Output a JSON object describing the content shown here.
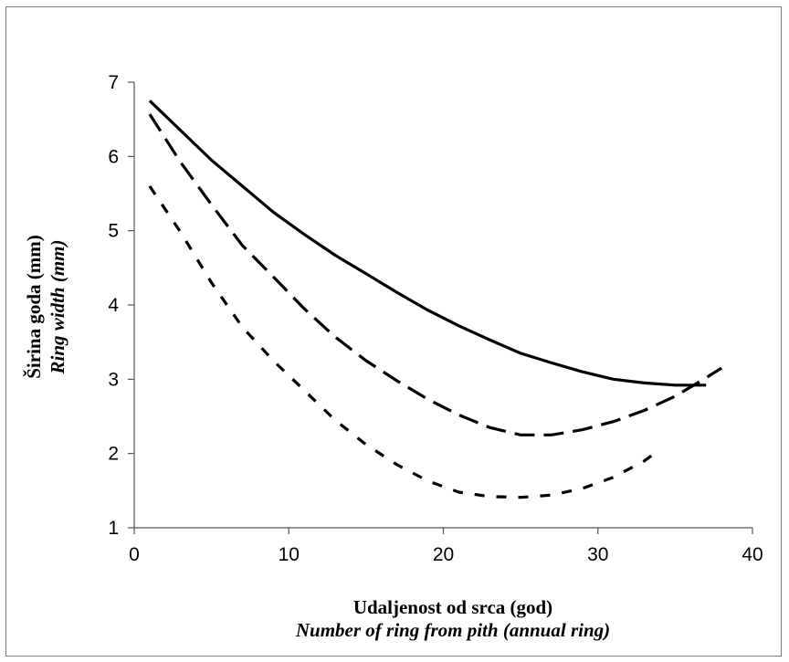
{
  "chart_data": {
    "type": "line",
    "xlabel": "Udaljenost od srca (god)",
    "xlabel_en": "Number of ring from pith (annual ring)",
    "ylabel": "Širina goda (mm)",
    "ylabel_en": "Ring width (mm)",
    "xlim": [
      0,
      40
    ],
    "ylim": [
      1,
      7
    ],
    "xticks": [
      "0",
      "10",
      "20",
      "30",
      "40"
    ],
    "yticks": [
      "1",
      "2",
      "3",
      "4",
      "5",
      "6",
      "7"
    ],
    "grid": false,
    "series": [
      {
        "style": "solid",
        "x": [
          1,
          3,
          5,
          7,
          9,
          11,
          13,
          15,
          17,
          19,
          21,
          23,
          25,
          27,
          29,
          31,
          33,
          35,
          37
        ],
        "y": [
          6.75,
          6.35,
          5.95,
          5.6,
          5.25,
          4.95,
          4.67,
          4.42,
          4.17,
          3.93,
          3.72,
          3.53,
          3.35,
          3.22,
          3.1,
          3.0,
          2.95,
          2.92,
          2.92
        ]
      },
      {
        "style": "dashed",
        "x": [
          1,
          3,
          5,
          7,
          9,
          11,
          13,
          15,
          17,
          19,
          21,
          23,
          25,
          27,
          29,
          31,
          33,
          35,
          37,
          38
        ],
        "y": [
          6.57,
          5.92,
          5.35,
          4.8,
          4.38,
          3.95,
          3.57,
          3.25,
          2.98,
          2.73,
          2.52,
          2.35,
          2.25,
          2.25,
          2.32,
          2.43,
          2.58,
          2.77,
          3.02,
          3.15
        ]
      },
      {
        "style": "short-dashed",
        "x": [
          1,
          3,
          5,
          7,
          9,
          11,
          13,
          15,
          17,
          19,
          21,
          23,
          25,
          27,
          29,
          31,
          33,
          34
        ],
        "y": [
          5.6,
          4.98,
          4.3,
          3.7,
          3.25,
          2.85,
          2.45,
          2.12,
          1.85,
          1.63,
          1.48,
          1.42,
          1.41,
          1.44,
          1.53,
          1.68,
          1.9,
          2.05
        ]
      }
    ]
  }
}
